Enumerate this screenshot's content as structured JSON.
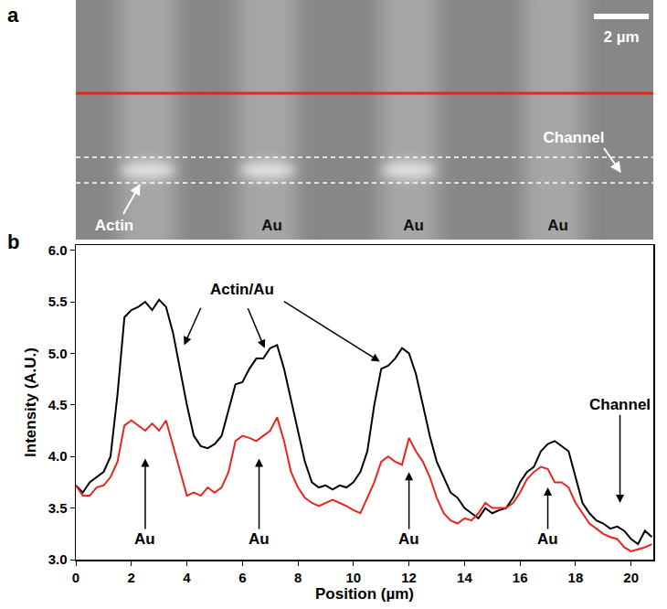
{
  "panel_a": {
    "letter": "a",
    "scale_bar": "2 µm",
    "channel": "Channel",
    "actin": "Actin",
    "au": [
      "Au",
      "Au",
      "Au"
    ]
  },
  "chart_data": {
    "type": "line",
    "panel_letter": "b",
    "x_label": "Position (µm)",
    "y_label": "Intensity (A.U.)",
    "xlim": [
      0,
      20.8
    ],
    "ylim": [
      3.0,
      6.05
    ],
    "xticks": [
      0,
      2,
      4,
      6,
      8,
      10,
      12,
      14,
      16,
      18,
      20
    ],
    "yticks": [
      {
        "value": 3,
        "label": "3.0"
      },
      {
        "value": 3.5,
        "label": "3.5"
      },
      {
        "value": 4,
        "label": "4.0"
      },
      {
        "value": 4.5,
        "label": "4.5"
      },
      {
        "value": 5,
        "label": "5.0"
      },
      {
        "value": 5.5,
        "label": "5.5"
      },
      {
        "value": 6,
        "label": "6.0"
      }
    ],
    "grid": false,
    "x": [
      0,
      0.25,
      0.5,
      0.75,
      1,
      1.25,
      1.5,
      1.75,
      2,
      2.25,
      2.5,
      2.75,
      3,
      3.25,
      3.5,
      3.75,
      4,
      4.25,
      4.5,
      4.75,
      5,
      5.25,
      5.5,
      5.75,
      6,
      6.25,
      6.5,
      6.75,
      7,
      7.25,
      7.5,
      7.75,
      8,
      8.25,
      8.5,
      8.75,
      9,
      9.25,
      9.5,
      9.75,
      10,
      10.25,
      10.5,
      10.75,
      11,
      11.25,
      11.5,
      11.75,
      12,
      12.25,
      12.5,
      12.75,
      13,
      13.25,
      13.5,
      13.75,
      14,
      14.25,
      14.5,
      14.75,
      15,
      15.25,
      15.5,
      15.75,
      16,
      16.25,
      16.5,
      16.75,
      17,
      17.25,
      17.5,
      17.75,
      18,
      18.25,
      18.5,
      18.75,
      19,
      19.25,
      19.5,
      19.75,
      20,
      20.25,
      20.5,
      20.75
    ],
    "series": [
      {
        "color": "#000000",
        "values": [
          3.72,
          3.65,
          3.75,
          3.8,
          3.85,
          4.0,
          4.6,
          5.35,
          5.42,
          5.45,
          5.5,
          5.42,
          5.52,
          5.45,
          5.2,
          4.85,
          4.5,
          4.2,
          4.1,
          4.08,
          4.12,
          4.2,
          4.45,
          4.7,
          4.72,
          4.85,
          4.95,
          4.95,
          5.05,
          5.08,
          4.85,
          4.55,
          4.25,
          3.95,
          3.75,
          3.7,
          3.72,
          3.68,
          3.72,
          3.7,
          3.75,
          3.85,
          4.05,
          4.5,
          4.85,
          4.88,
          4.95,
          5.05,
          5.0,
          4.8,
          4.5,
          4.2,
          3.95,
          3.8,
          3.65,
          3.6,
          3.5,
          3.45,
          3.4,
          3.5,
          3.45,
          3.48,
          3.5,
          3.6,
          3.75,
          3.85,
          3.9,
          4.05,
          4.12,
          4.15,
          4.1,
          4.05,
          3.8,
          3.55,
          3.45,
          3.38,
          3.35,
          3.3,
          3.32,
          3.28,
          3.2,
          3.15,
          3.28,
          3.22
        ]
      },
      {
        "color": "#e8251e",
        "values": [
          3.72,
          3.62,
          3.62,
          3.7,
          3.72,
          3.8,
          3.95,
          4.3,
          4.35,
          4.3,
          4.25,
          4.32,
          4.25,
          4.35,
          4.1,
          3.85,
          3.62,
          3.65,
          3.62,
          3.7,
          3.65,
          3.7,
          3.85,
          4.15,
          4.2,
          4.18,
          4.15,
          4.2,
          4.25,
          4.38,
          4.15,
          3.85,
          3.7,
          3.6,
          3.55,
          3.52,
          3.55,
          3.58,
          3.55,
          3.52,
          3.48,
          3.45,
          3.6,
          3.75,
          3.95,
          4.0,
          3.95,
          3.92,
          4.18,
          4.05,
          3.95,
          3.8,
          3.6,
          3.45,
          3.38,
          3.35,
          3.4,
          3.38,
          3.45,
          3.55,
          3.5,
          3.5,
          3.5,
          3.55,
          3.65,
          3.78,
          3.85,
          3.9,
          3.88,
          3.75,
          3.75,
          3.7,
          3.55,
          3.45,
          3.35,
          3.3,
          3.25,
          3.22,
          3.2,
          3.12,
          3.08,
          3.1,
          3.12,
          3.15
        ]
      }
    ],
    "annotations": [
      {
        "text": "Actin/Au"
      },
      {
        "text": "Au"
      },
      {
        "text": "Au"
      },
      {
        "text": "Au"
      },
      {
        "text": "Au"
      },
      {
        "text": "Channel"
      }
    ]
  }
}
